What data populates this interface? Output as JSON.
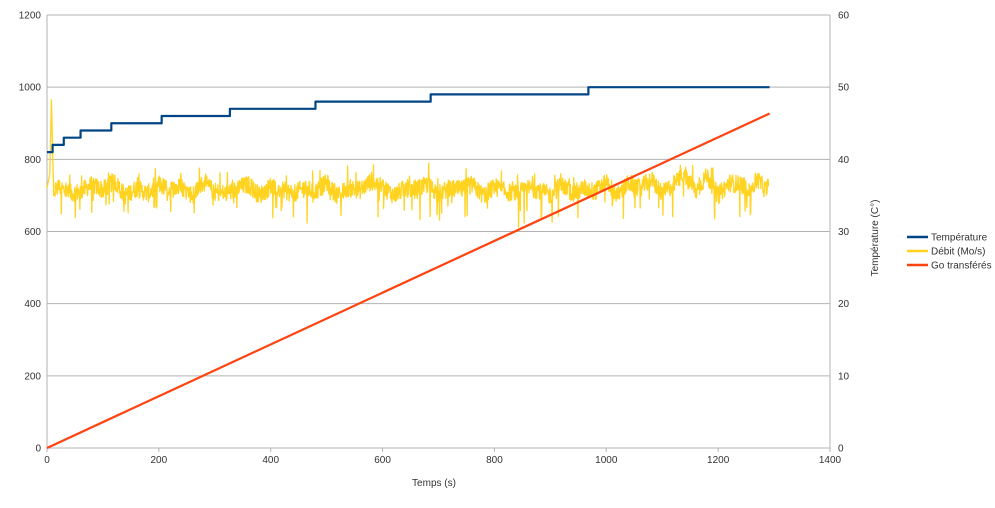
{
  "colors": {
    "temperature": "#004586",
    "debit": "#ffd320",
    "go": "#ff420e",
    "grid": "#b3b3b3",
    "text": "#333333"
  },
  "chart_data": {
    "type": "line",
    "title": "",
    "xlabel": "Temps (s)",
    "ylabel": "",
    "y2label": "Température (C°)",
    "xlim": [
      0,
      1400
    ],
    "ylim": [
      0,
      1200
    ],
    "y2lim": [
      0,
      60
    ],
    "x_ticks": [
      "0",
      "200",
      "400",
      "600",
      "800",
      "1000",
      "1200",
      "1400"
    ],
    "y_ticks": [
      "0",
      "200",
      "400",
      "600",
      "800",
      "1000",
      "1200"
    ],
    "y2_ticks": [
      "0",
      "10",
      "20",
      "30",
      "40",
      "50",
      "60"
    ],
    "grid": true,
    "legend_position": "right",
    "series": [
      {
        "name": "Température",
        "axis": "right",
        "style": "step",
        "x": [
          0,
          10,
          10,
          30,
          30,
          60,
          60,
          115,
          115,
          205,
          205,
          327,
          327,
          480,
          480,
          686,
          686,
          968,
          968,
          1292
        ],
        "y": [
          41,
          41,
          42,
          42,
          43,
          43,
          44,
          44,
          45,
          45,
          46,
          46,
          47,
          47,
          48,
          48,
          49,
          49,
          50,
          50
        ]
      },
      {
        "name": "Débit (Mo/s)",
        "axis": "left",
        "style": "noisy",
        "x": [
          0,
          5,
          8,
          12,
          20,
          40,
          60,
          80,
          100,
          120,
          140,
          160,
          180,
          200,
          220,
          240,
          260,
          280,
          300,
          320,
          340,
          360,
          380,
          400,
          420,
          440,
          460,
          480,
          500,
          520,
          540,
          560,
          580,
          600,
          620,
          640,
          660,
          680,
          700,
          720,
          740,
          760,
          780,
          800,
          820,
          840,
          860,
          880,
          900,
          920,
          940,
          960,
          980,
          1000,
          1020,
          1040,
          1060,
          1080,
          1100,
          1120,
          1140,
          1160,
          1180,
          1200,
          1220,
          1240,
          1260,
          1270,
          1285,
          1290
        ],
        "y": [
          720,
          760,
          965,
          700,
          725,
          705,
          710,
          730,
          715,
          740,
          700,
          720,
          705,
          730,
          715,
          725,
          700,
          735,
          710,
          705,
          720,
          730,
          700,
          725,
          715,
          705,
          720,
          710,
          735,
          700,
          720,
          715,
          740,
          725,
          700,
          720,
          715,
          730,
          705,
          720,
          715,
          730,
          700,
          725,
          710,
          705,
          720,
          715,
          700,
          730,
          705,
          720,
          710,
          740,
          700,
          735,
          720,
          745,
          705,
          730,
          760,
          710,
          755,
          700,
          735,
          730,
          720,
          745,
          715,
          725
        ]
      },
      {
        "name": "Go transférés",
        "axis": "left",
        "style": "line",
        "x": [
          0,
          1292
        ],
        "y": [
          0,
          927
        ]
      }
    ]
  }
}
